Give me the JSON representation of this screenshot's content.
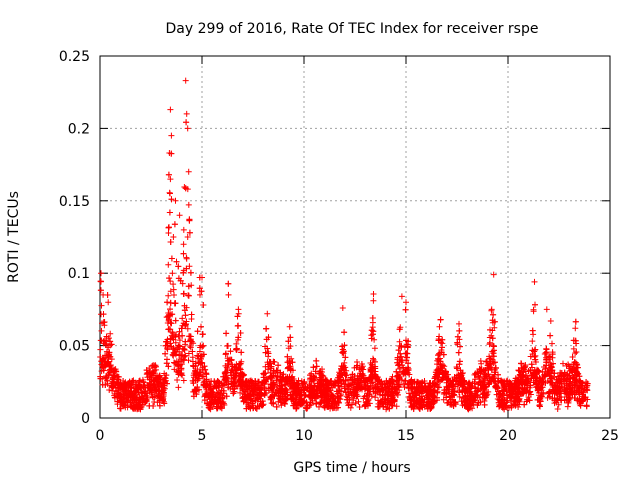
{
  "chart_data": {
    "type": "scatter",
    "title": "Day 299 of 2016, Rate Of TEC Index for receiver rspe",
    "xlabel": "GPS time / hours",
    "ylabel": "ROTI / TECUs",
    "xlim": [
      0,
      25
    ],
    "ylim": [
      0,
      0.25
    ],
    "xticks": [
      0,
      5,
      10,
      15,
      20,
      25
    ],
    "yticks": [
      0,
      0.05,
      0.1,
      0.15,
      0.2,
      0.25
    ],
    "xtick_labels": [
      "0",
      "5",
      "10",
      "15",
      "20",
      "25"
    ],
    "ytick_labels": [
      "0",
      "0.05",
      "0.1",
      "0.15",
      "0.2",
      "0.25"
    ],
    "grid": true,
    "marker": "plus",
    "color": "#ff0000",
    "x_range_of_data": [
      0,
      23.9
    ],
    "peaks": [
      {
        "x": 0.05,
        "y": 0.1
      },
      {
        "x": 0.15,
        "y": 0.085
      },
      {
        "x": 0.4,
        "y": 0.08
      },
      {
        "x": 3.45,
        "y": 0.213
      },
      {
        "x": 3.5,
        "y": 0.195
      },
      {
        "x": 3.4,
        "y": 0.183
      },
      {
        "x": 3.45,
        "y": 0.165
      },
      {
        "x": 3.7,
        "y": 0.15
      },
      {
        "x": 3.9,
        "y": 0.14
      },
      {
        "x": 4.2,
        "y": 0.233
      },
      {
        "x": 4.25,
        "y": 0.21
      },
      {
        "x": 4.3,
        "y": 0.2
      },
      {
        "x": 4.35,
        "y": 0.17
      },
      {
        "x": 4.3,
        "y": 0.125
      },
      {
        "x": 4.25,
        "y": 0.11
      },
      {
        "x": 3.6,
        "y": 0.125
      },
      {
        "x": 3.55,
        "y": 0.1
      },
      {
        "x": 4.1,
        "y": 0.12
      },
      {
        "x": 5.0,
        "y": 0.097
      },
      {
        "x": 4.9,
        "y": 0.085
      },
      {
        "x": 6.3,
        "y": 0.085
      },
      {
        "x": 6.8,
        "y": 0.072
      },
      {
        "x": 8.2,
        "y": 0.072
      },
      {
        "x": 9.3,
        "y": 0.063
      },
      {
        "x": 11.9,
        "y": 0.076
      },
      {
        "x": 13.4,
        "y": 0.081
      },
      {
        "x": 14.8,
        "y": 0.084
      },
      {
        "x": 15.0,
        "y": 0.08
      },
      {
        "x": 16.7,
        "y": 0.068
      },
      {
        "x": 17.6,
        "y": 0.065
      },
      {
        "x": 19.3,
        "y": 0.099
      },
      {
        "x": 19.2,
        "y": 0.075
      },
      {
        "x": 21.3,
        "y": 0.094
      },
      {
        "x": 21.9,
        "y": 0.075
      },
      {
        "x": 22.1,
        "y": 0.067
      },
      {
        "x": 23.3,
        "y": 0.062
      }
    ]
  }
}
